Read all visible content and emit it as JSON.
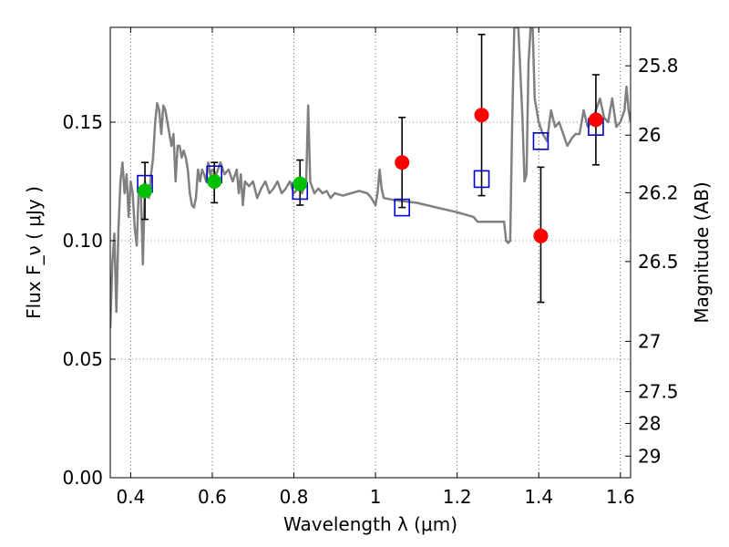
{
  "chart_data": {
    "type": "scatter",
    "xlabel": "Wavelength  λ (μm)",
    "ylabel": "Flux  F_ν  ( μJy )",
    "y2label": "Magnitude (AB)",
    "xlim": [
      0.35,
      1.625
    ],
    "ylim": [
      0.0,
      0.19
    ],
    "x_ticks": [
      {
        "value": 0.4,
        "label": "0.4"
      },
      {
        "value": 0.6,
        "label": "0.6"
      },
      {
        "value": 0.8,
        "label": "0.8"
      },
      {
        "value": 1.0,
        "label": "1"
      },
      {
        "value": 1.2,
        "label": "1.2"
      },
      {
        "value": 1.4,
        "label": "1.4"
      },
      {
        "value": 1.6,
        "label": "1.6"
      }
    ],
    "y_ticks": [
      {
        "value": 0.0,
        "label": "0.00"
      },
      {
        "value": 0.05,
        "label": "0.05"
      },
      {
        "value": 0.1,
        "label": "0.10"
      },
      {
        "value": 0.15,
        "label": "0.15"
      }
    ],
    "y2_ticks": [
      {
        "label": "25.8",
        "mag": 25.8
      },
      {
        "label": "26",
        "mag": 26.0
      },
      {
        "label": "26.2",
        "mag": 26.2
      },
      {
        "label": "26.5",
        "mag": 26.5
      },
      {
        "label": "27",
        "mag": 27.0
      },
      {
        "label": "27.5",
        "mag": 27.5
      },
      {
        "label": "28",
        "mag": 28.0
      },
      {
        "label": "29",
        "mag": 29.0
      }
    ],
    "grid": true,
    "colors": {
      "model": "#808080",
      "model_points": "#0000cc",
      "green": "#00c000",
      "red": "#ff0000",
      "errorbar": "#000000"
    },
    "series": [
      {
        "kind": "spectrum",
        "points": [
          [
            0.35,
            0.063
          ],
          [
            0.355,
            0.09
          ],
          [
            0.36,
            0.103
          ],
          [
            0.365,
            0.07
          ],
          [
            0.37,
            0.105
          ],
          [
            0.375,
            0.125
          ],
          [
            0.38,
            0.133
          ],
          [
            0.385,
            0.12
          ],
          [
            0.39,
            0.128
          ],
          [
            0.395,
            0.11
          ],
          [
            0.4,
            0.125
          ],
          [
            0.405,
            0.12
          ],
          [
            0.41,
            0.105
          ],
          [
            0.415,
            0.098
          ],
          [
            0.42,
            0.122
          ],
          [
            0.425,
            0.12
          ],
          [
            0.43,
            0.09
          ],
          [
            0.435,
            0.125
          ],
          [
            0.44,
            0.12
          ],
          [
            0.445,
            0.118
          ],
          [
            0.45,
            0.128
          ],
          [
            0.455,
            0.135
          ],
          [
            0.46,
            0.15
          ],
          [
            0.465,
            0.158
          ],
          [
            0.47,
            0.155
          ],
          [
            0.475,
            0.145
          ],
          [
            0.48,
            0.157
          ],
          [
            0.485,
            0.155
          ],
          [
            0.49,
            0.15
          ],
          [
            0.495,
            0.145
          ],
          [
            0.5,
            0.14
          ],
          [
            0.505,
            0.145
          ],
          [
            0.51,
            0.125
          ],
          [
            0.515,
            0.14
          ],
          [
            0.52,
            0.14
          ],
          [
            0.525,
            0.135
          ],
          [
            0.53,
            0.138
          ],
          [
            0.535,
            0.135
          ],
          [
            0.54,
            0.13
          ],
          [
            0.545,
            0.12
          ],
          [
            0.55,
            0.115
          ],
          [
            0.555,
            0.114
          ],
          [
            0.56,
            0.118
          ],
          [
            0.565,
            0.13
          ],
          [
            0.57,
            0.125
          ],
          [
            0.575,
            0.13
          ],
          [
            0.58,
            0.128
          ],
          [
            0.585,
            0.125
          ],
          [
            0.59,
            0.133
          ],
          [
            0.595,
            0.128
          ],
          [
            0.6,
            0.13
          ],
          [
            0.61,
            0.128
          ],
          [
            0.62,
            0.133
          ],
          [
            0.63,
            0.128
          ],
          [
            0.64,
            0.13
          ],
          [
            0.65,
            0.125
          ],
          [
            0.66,
            0.13
          ],
          [
            0.665,
            0.12
          ],
          [
            0.67,
            0.128
          ],
          [
            0.675,
            0.115
          ],
          [
            0.68,
            0.125
          ],
          [
            0.69,
            0.123
          ],
          [
            0.7,
            0.125
          ],
          [
            0.71,
            0.118
          ],
          [
            0.72,
            0.122
          ],
          [
            0.73,
            0.125
          ],
          [
            0.74,
            0.12
          ],
          [
            0.75,
            0.122
          ],
          [
            0.76,
            0.125
          ],
          [
            0.77,
            0.12
          ],
          [
            0.78,
            0.122
          ],
          [
            0.79,
            0.125
          ],
          [
            0.8,
            0.12
          ],
          [
            0.81,
            0.122
          ],
          [
            0.82,
            0.12
          ],
          [
            0.83,
            0.125
          ],
          [
            0.835,
            0.157
          ],
          [
            0.84,
            0.125
          ],
          [
            0.85,
            0.12
          ],
          [
            0.86,
            0.122
          ],
          [
            0.87,
            0.12
          ],
          [
            0.88,
            0.121
          ],
          [
            0.89,
            0.118
          ],
          [
            0.9,
            0.12
          ],
          [
            0.92,
            0.119
          ],
          [
            0.94,
            0.12
          ],
          [
            0.96,
            0.121
          ],
          [
            0.98,
            0.12
          ],
          [
            0.99,
            0.118
          ],
          [
            1.0,
            0.115
          ],
          [
            1.005,
            0.12
          ],
          [
            1.01,
            0.13
          ],
          [
            1.015,
            0.122
          ],
          [
            1.02,
            0.118
          ],
          [
            1.05,
            0.117
          ],
          [
            1.1,
            0.116
          ],
          [
            1.15,
            0.114
          ],
          [
            1.2,
            0.112
          ],
          [
            1.24,
            0.11
          ],
          [
            1.25,
            0.108
          ],
          [
            1.3,
            0.108
          ],
          [
            1.315,
            0.108
          ],
          [
            1.32,
            0.1
          ],
          [
            1.325,
            0.099
          ],
          [
            1.33,
            0.1
          ],
          [
            1.335,
            0.15
          ],
          [
            1.34,
            0.19
          ],
          [
            1.35,
            0.19
          ],
          [
            1.36,
            0.152
          ],
          [
            1.365,
            0.125
          ],
          [
            1.37,
            0.128
          ],
          [
            1.375,
            0.175
          ],
          [
            1.38,
            0.19
          ],
          [
            1.385,
            0.19
          ],
          [
            1.39,
            0.16
          ],
          [
            1.4,
            0.15
          ],
          [
            1.41,
            0.145
          ],
          [
            1.42,
            0.142
          ],
          [
            1.43,
            0.155
          ],
          [
            1.44,
            0.148
          ],
          [
            1.45,
            0.15
          ],
          [
            1.46,
            0.145
          ],
          [
            1.47,
            0.14
          ],
          [
            1.48,
            0.143
          ],
          [
            1.49,
            0.145
          ],
          [
            1.5,
            0.145
          ],
          [
            1.51,
            0.155
          ],
          [
            1.52,
            0.148
          ],
          [
            1.53,
            0.15
          ],
          [
            1.54,
            0.155
          ],
          [
            1.55,
            0.16
          ],
          [
            1.56,
            0.152
          ],
          [
            1.57,
            0.15
          ],
          [
            1.58,
            0.16
          ],
          [
            1.59,
            0.148
          ],
          [
            1.6,
            0.15
          ],
          [
            1.61,
            0.155
          ],
          [
            1.615,
            0.165
          ],
          [
            1.62,
            0.155
          ],
          [
            1.625,
            0.15
          ]
        ]
      },
      {
        "kind": "model_points",
        "points": [
          [
            0.435,
            0.124
          ],
          [
            0.605,
            0.128
          ],
          [
            0.815,
            0.121
          ],
          [
            1.065,
            0.114
          ],
          [
            1.26,
            0.126
          ],
          [
            1.405,
            0.142
          ],
          [
            1.54,
            0.148
          ]
        ]
      },
      {
        "kind": "measurements_green",
        "points": [
          {
            "x": 0.435,
            "y": 0.121,
            "lo": 0.109,
            "hi": 0.133
          },
          {
            "x": 0.605,
            "y": 0.125,
            "lo": 0.116,
            "hi": 0.133
          },
          {
            "x": 0.815,
            "y": 0.124,
            "lo": 0.115,
            "hi": 0.134
          }
        ]
      },
      {
        "kind": "measurements_red",
        "points": [
          {
            "x": 1.065,
            "y": 0.133,
            "lo": 0.114,
            "hi": 0.152
          },
          {
            "x": 1.26,
            "y": 0.153,
            "lo": 0.119,
            "hi": 0.187
          },
          {
            "x": 1.405,
            "y": 0.102,
            "lo": 0.074,
            "hi": 0.131
          },
          {
            "x": 1.54,
            "y": 0.151,
            "lo": 0.132,
            "hi": 0.17
          }
        ]
      }
    ]
  }
}
